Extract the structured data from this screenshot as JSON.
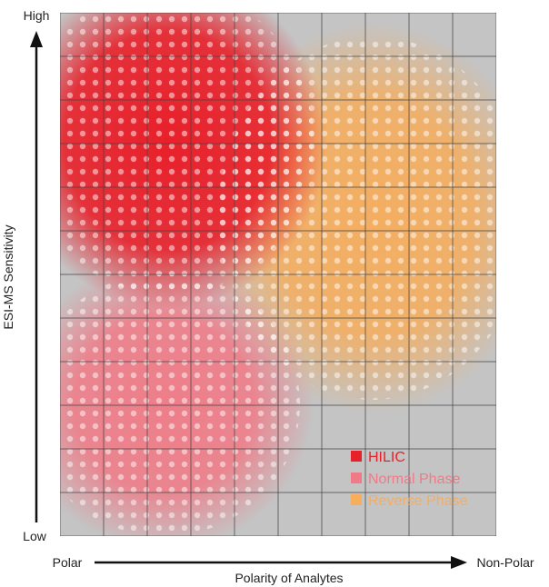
{
  "y_axis": {
    "label": "ESI-MS Sensitivity",
    "high_label": "High",
    "low_label": "Low"
  },
  "x_axis": {
    "label": "Polarity of Analytes",
    "left_label": "Polar",
    "right_label": "Non-Polar"
  },
  "legend": [
    {
      "label": "HILIC",
      "color": "#e8202a"
    },
    {
      "label": "Normal Phase",
      "color": "#f07a86"
    },
    {
      "label": "Reverse Phase",
      "color": "#f6ad5c"
    }
  ],
  "colors": {
    "background": "#c4c4c4",
    "grid": "#444444",
    "hilic": "#e8202a",
    "normal_phase": "#f07a86",
    "reverse_phase": "#f6ad5c"
  }
}
